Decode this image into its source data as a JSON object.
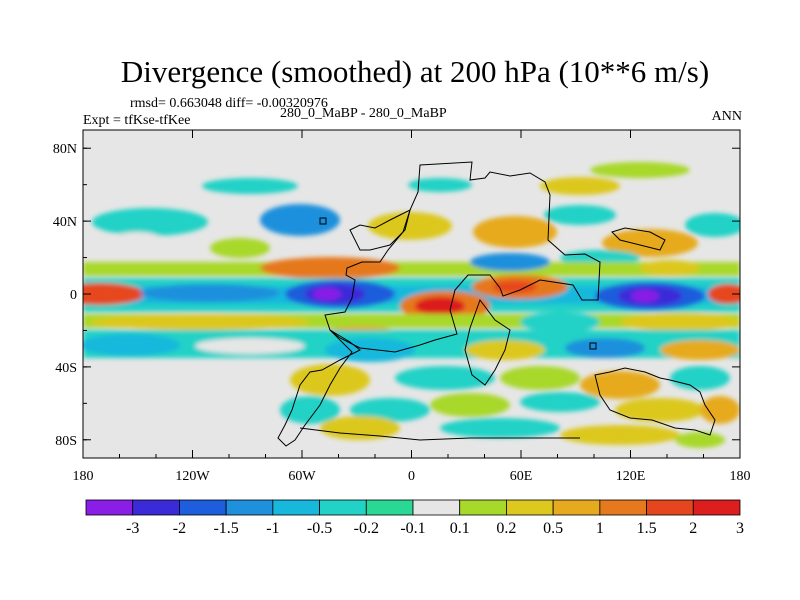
{
  "chart_data": {
    "type": "heatmap",
    "title": "Divergence (smoothed) at 200 hPa (10**6 m/s)",
    "stats": "rmsd= 0.663048 diff= -0.00320976",
    "experiment": "Expt = tfKse-tfKee",
    "runs": "280_0_MaBP - 280_0_MaBP",
    "season": "ANN",
    "xlim": [
      -180,
      180
    ],
    "ylim": [
      -90,
      90
    ],
    "x_ticks": [
      {
        "value": -180,
        "label": "180"
      },
      {
        "value": -120,
        "label": "120W"
      },
      {
        "value": -60,
        "label": "60W"
      },
      {
        "value": 0,
        "label": "0"
      },
      {
        "value": 60,
        "label": "60E"
      },
      {
        "value": 120,
        "label": "120E"
      },
      {
        "value": 180,
        "label": "180"
      }
    ],
    "y_ticks": [
      {
        "value": 80,
        "label": "80N"
      },
      {
        "value": 40,
        "label": "40N"
      },
      {
        "value": 0,
        "label": "0"
      },
      {
        "value": -40,
        "label": "40S"
      },
      {
        "value": -80,
        "label": "80S"
      }
    ],
    "colorbar": {
      "boundaries": [
        "-3",
        "-2",
        "-1.5",
        "-1",
        "-0.5",
        "-0.2",
        "-0.1",
        "0.1",
        "0.2",
        "0.5",
        "1",
        "1.5",
        "2",
        "3"
      ],
      "colors": [
        "#8a1ee6",
        "#3a2ad8",
        "#1e5ddc",
        "#1e90dc",
        "#18b8dc",
        "#22d2c6",
        "#2ad896",
        "#e6e6e6",
        "#a8d82a",
        "#dcc81e",
        "#e6aa1e",
        "#e6781e",
        "#e6461e",
        "#dc1e1e"
      ]
    },
    "features": [
      {
        "name": "equatorial minimum, central Atlantic",
        "lon": -40,
        "lat": 0,
        "value": -3
      },
      {
        "name": "equatorial minimum, western Pacific",
        "lon": 130,
        "lat": 0,
        "value": -3
      },
      {
        "name": "maximum over tropical Africa",
        "lon": 5,
        "lat": -5,
        "value": 3
      },
      {
        "name": "maximum over Arabia / Indian Ocean",
        "lon": 55,
        "lat": 5,
        "value": 2
      },
      {
        "name": "maximum over northern Atlantic subtropics",
        "lon": -45,
        "lat": 15,
        "value": 1.5
      },
      {
        "name": "maximum over eastern Pacific ITCZ",
        "lon": -170,
        "lat": 0,
        "value": 1.5
      },
      {
        "name": "maximum over Asia",
        "lon": 120,
        "lat": 28,
        "value": 1
      }
    ]
  }
}
